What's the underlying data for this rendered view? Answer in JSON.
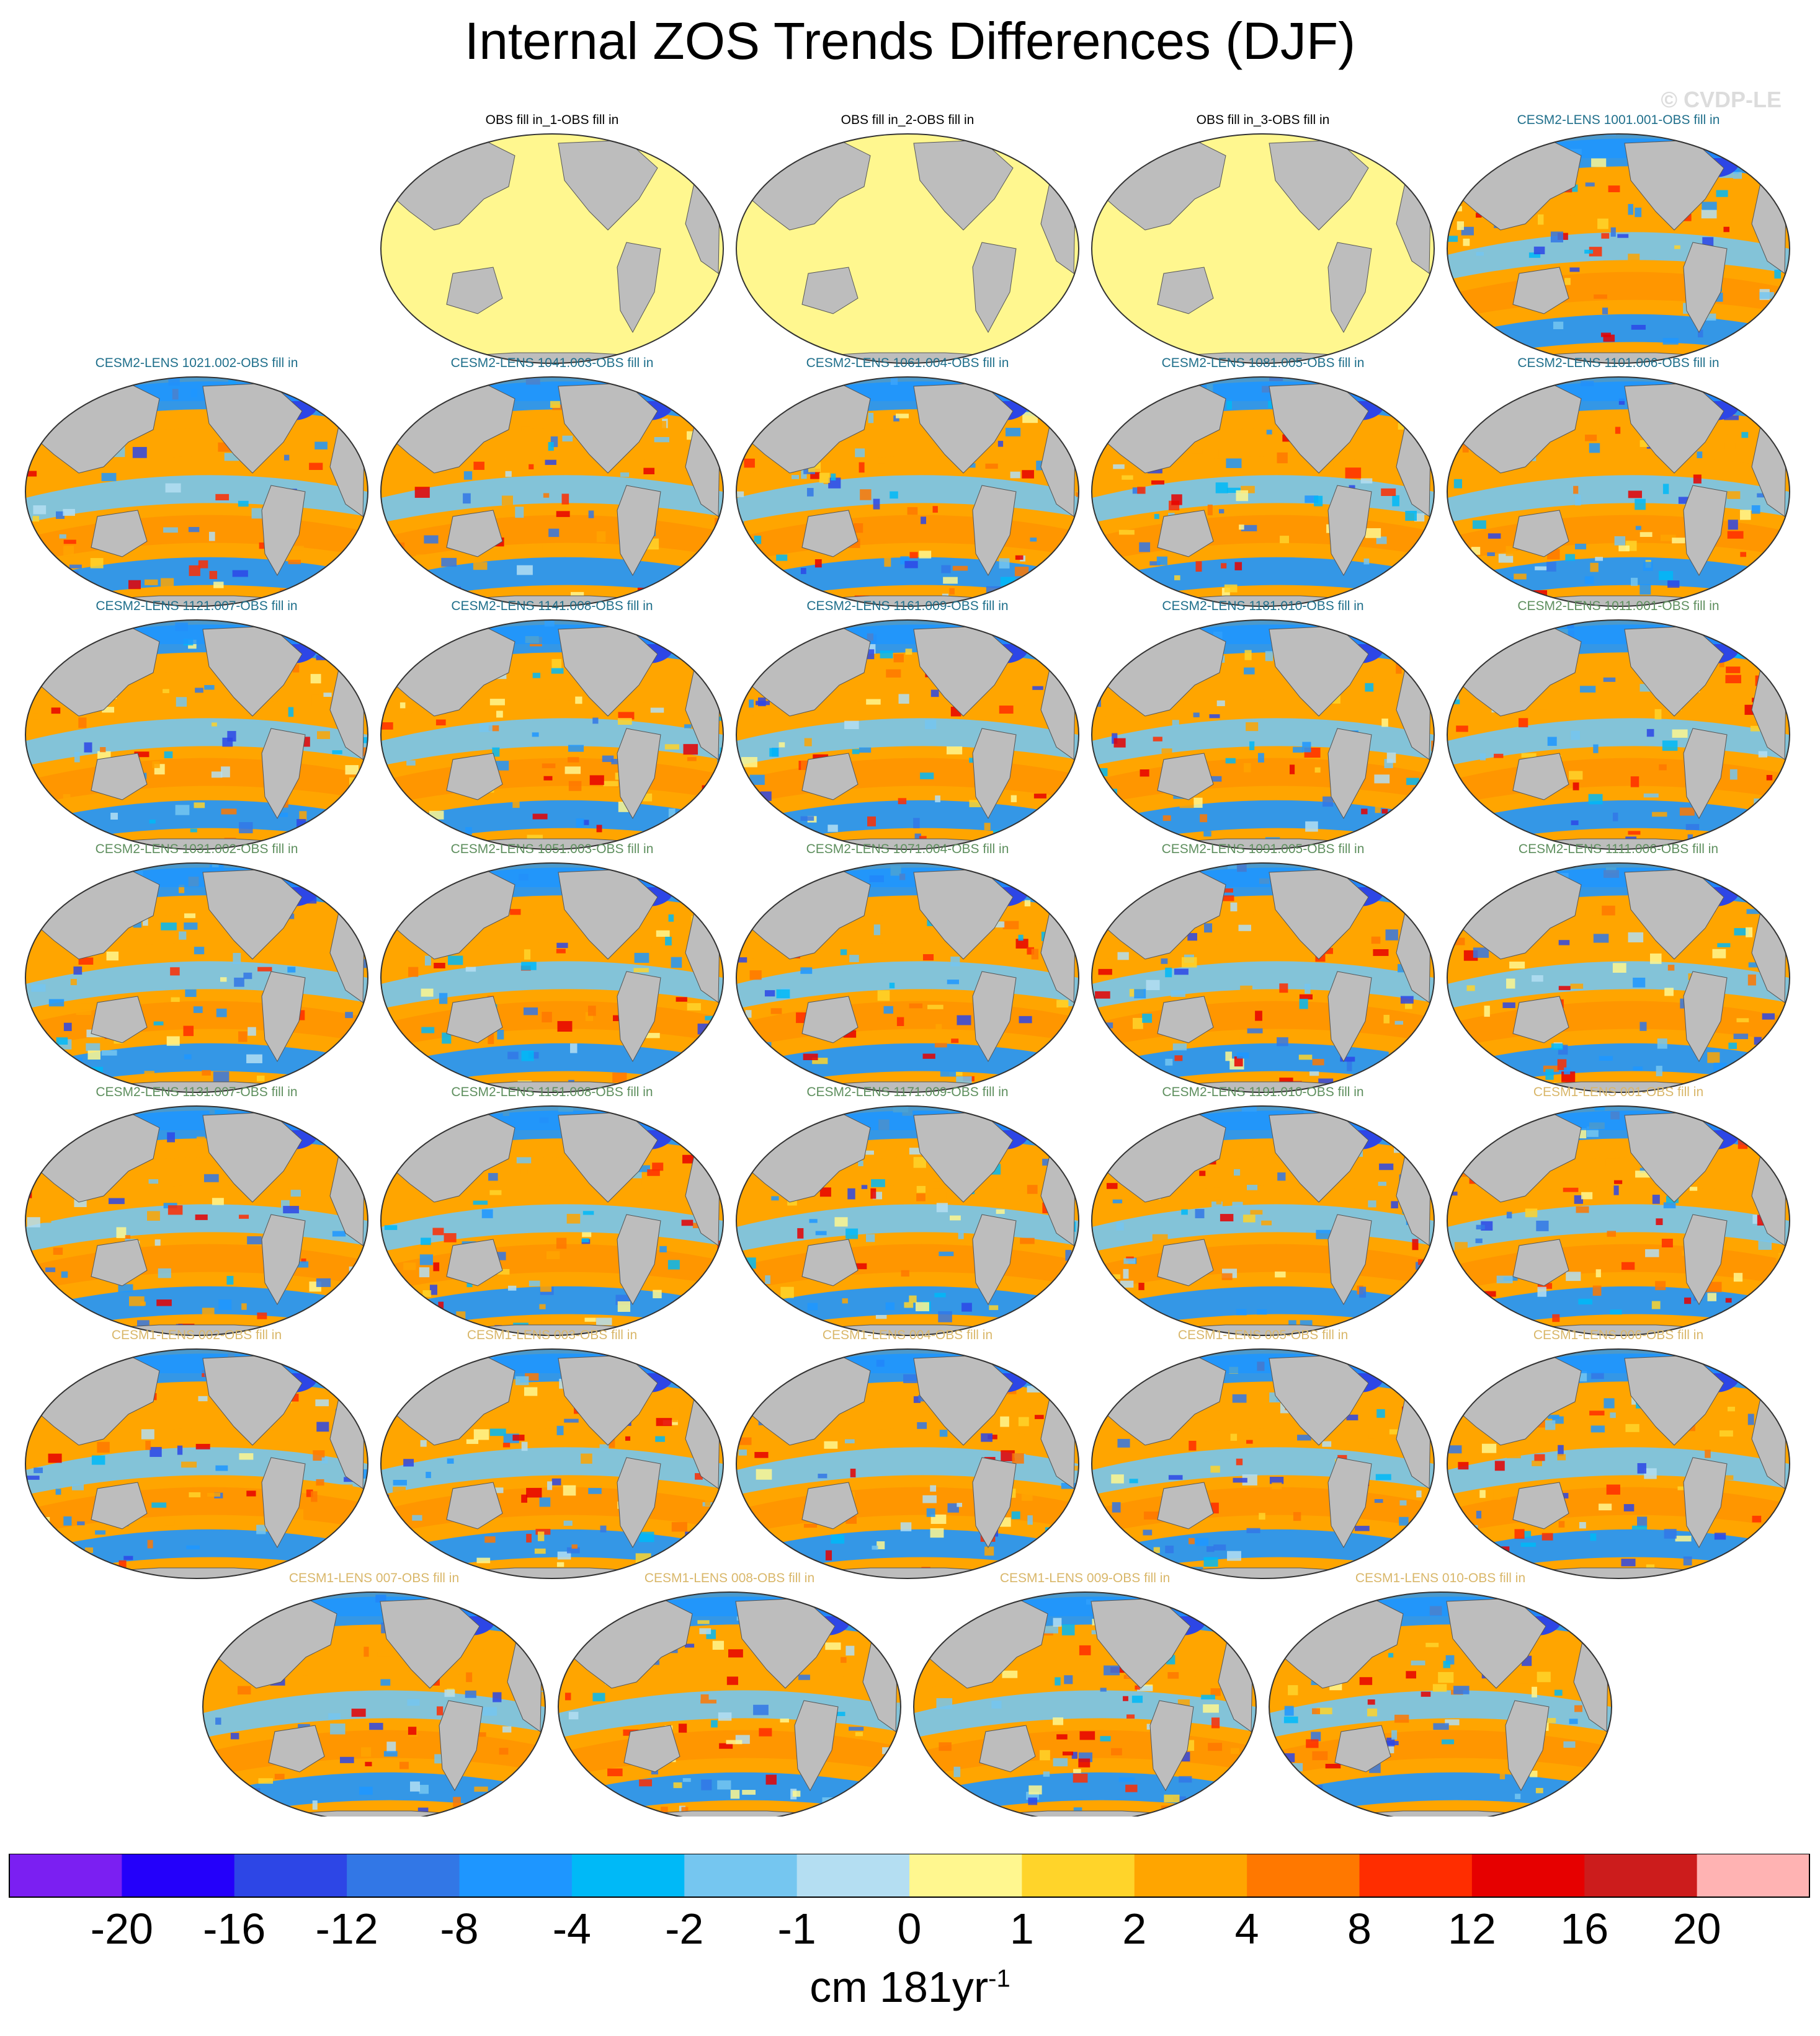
{
  "title": "Internal ZOS Trends Differences (DJF)",
  "watermark": "© CVDP-LE",
  "units": {
    "main": "cm 181yr",
    "exponent": "-1"
  },
  "label_colors": {
    "obs": "#000000",
    "cesm2_a": "#1f6f8b",
    "cesm2_b": "#5e8f5e",
    "cesm1": "#d9b76a"
  },
  "fill_colors": {
    "land": "#bdbdbd",
    "obs_ocean": "#fff78f"
  },
  "panels": [
    {
      "label": "OBS fill in_1-OBS fill in",
      "group": "obs",
      "type": "obs"
    },
    {
      "label": "OBS fill in_2-OBS fill in",
      "group": "obs",
      "type": "obs"
    },
    {
      "label": "OBS fill in_3-OBS fill in",
      "group": "obs",
      "type": "obs"
    },
    {
      "label": "CESM2-LENS 1001.001-OBS fill in",
      "group": "cesm2_a",
      "type": "model"
    },
    {
      "label": "CESM2-LENS 1021.002-OBS fill in",
      "group": "cesm2_a",
      "type": "model"
    },
    {
      "label": "CESM2-LENS 1041.003-OBS fill in",
      "group": "cesm2_a",
      "type": "model"
    },
    {
      "label": "CESM2-LENS 1061.004-OBS fill in",
      "group": "cesm2_a",
      "type": "model"
    },
    {
      "label": "CESM2-LENS 1081.005-OBS fill in",
      "group": "cesm2_a",
      "type": "model"
    },
    {
      "label": "CESM2-LENS 1101.006-OBS fill in",
      "group": "cesm2_a",
      "type": "model"
    },
    {
      "label": "CESM2-LENS 1121.007-OBS fill in",
      "group": "cesm2_a",
      "type": "model"
    },
    {
      "label": "CESM2-LENS 1141.008-OBS fill in",
      "group": "cesm2_a",
      "type": "model"
    },
    {
      "label": "CESM2-LENS 1161.009-OBS fill in",
      "group": "cesm2_a",
      "type": "model"
    },
    {
      "label": "CESM2-LENS 1181.010-OBS fill in",
      "group": "cesm2_a",
      "type": "model"
    },
    {
      "label": "CESM2-LENS 1011.001-OBS fill in",
      "group": "cesm2_b",
      "type": "model"
    },
    {
      "label": "CESM2-LENS 1031.002-OBS fill in",
      "group": "cesm2_b",
      "type": "model"
    },
    {
      "label": "CESM2-LENS 1051.003-OBS fill in",
      "group": "cesm2_b",
      "type": "model"
    },
    {
      "label": "CESM2-LENS 1071.004-OBS fill in",
      "group": "cesm2_b",
      "type": "model"
    },
    {
      "label": "CESM2-LENS 1091.005-OBS fill in",
      "group": "cesm2_b",
      "type": "model"
    },
    {
      "label": "CESM2-LENS 1111.006-OBS fill in",
      "group": "cesm2_b",
      "type": "model"
    },
    {
      "label": "CESM2-LENS 1131.007-OBS fill in",
      "group": "cesm2_b",
      "type": "model"
    },
    {
      "label": "CESM2-LENS 1151.008-OBS fill in",
      "group": "cesm2_b",
      "type": "model"
    },
    {
      "label": "CESM2-LENS 1171.009-OBS fill in",
      "group": "cesm2_b",
      "type": "model"
    },
    {
      "label": "CESM2-LENS 1191.010-OBS fill in",
      "group": "cesm2_b",
      "type": "model"
    },
    {
      "label": "CESM1-LENS 001-OBS fill in",
      "group": "cesm1",
      "type": "model"
    },
    {
      "label": "CESM1-LENS 002-OBS fill in",
      "group": "cesm1",
      "type": "model"
    },
    {
      "label": "CESM1-LENS 003-OBS fill in",
      "group": "cesm1",
      "type": "model"
    },
    {
      "label": "CESM1-LENS 004-OBS fill in",
      "group": "cesm1",
      "type": "model"
    },
    {
      "label": "CESM1-LENS 005-OBS fill in",
      "group": "cesm1",
      "type": "model"
    },
    {
      "label": "CESM1-LENS 006-OBS fill in",
      "group": "cesm1",
      "type": "model"
    },
    {
      "label": "CESM1-LENS 007-OBS fill in",
      "group": "cesm1",
      "type": "model"
    },
    {
      "label": "CESM1-LENS 008-OBS fill in",
      "group": "cesm1",
      "type": "model"
    },
    {
      "label": "CESM1-LENS 009-OBS fill in",
      "group": "cesm1",
      "type": "model"
    },
    {
      "label": "CESM1-LENS 010-OBS fill in",
      "group": "cesm1",
      "type": "model"
    }
  ],
  "colorbar": {
    "colors": [
      "#7b1ff2",
      "#2400fa",
      "#2d46e6",
      "#3277e6",
      "#1e96ff",
      "#00b9f7",
      "#75c6f0",
      "#b4def2",
      "#fff78f",
      "#ffd42a",
      "#ffa500",
      "#ff7800",
      "#ff2d00",
      "#e60000",
      "#cc1c1c",
      "#ffb3b3"
    ],
    "ticks": [
      "-20",
      "-16",
      "-12",
      "-8",
      "-4",
      "-2",
      "-1",
      "0",
      "1",
      "2",
      "4",
      "8",
      "12",
      "16",
      "20"
    ]
  }
}
